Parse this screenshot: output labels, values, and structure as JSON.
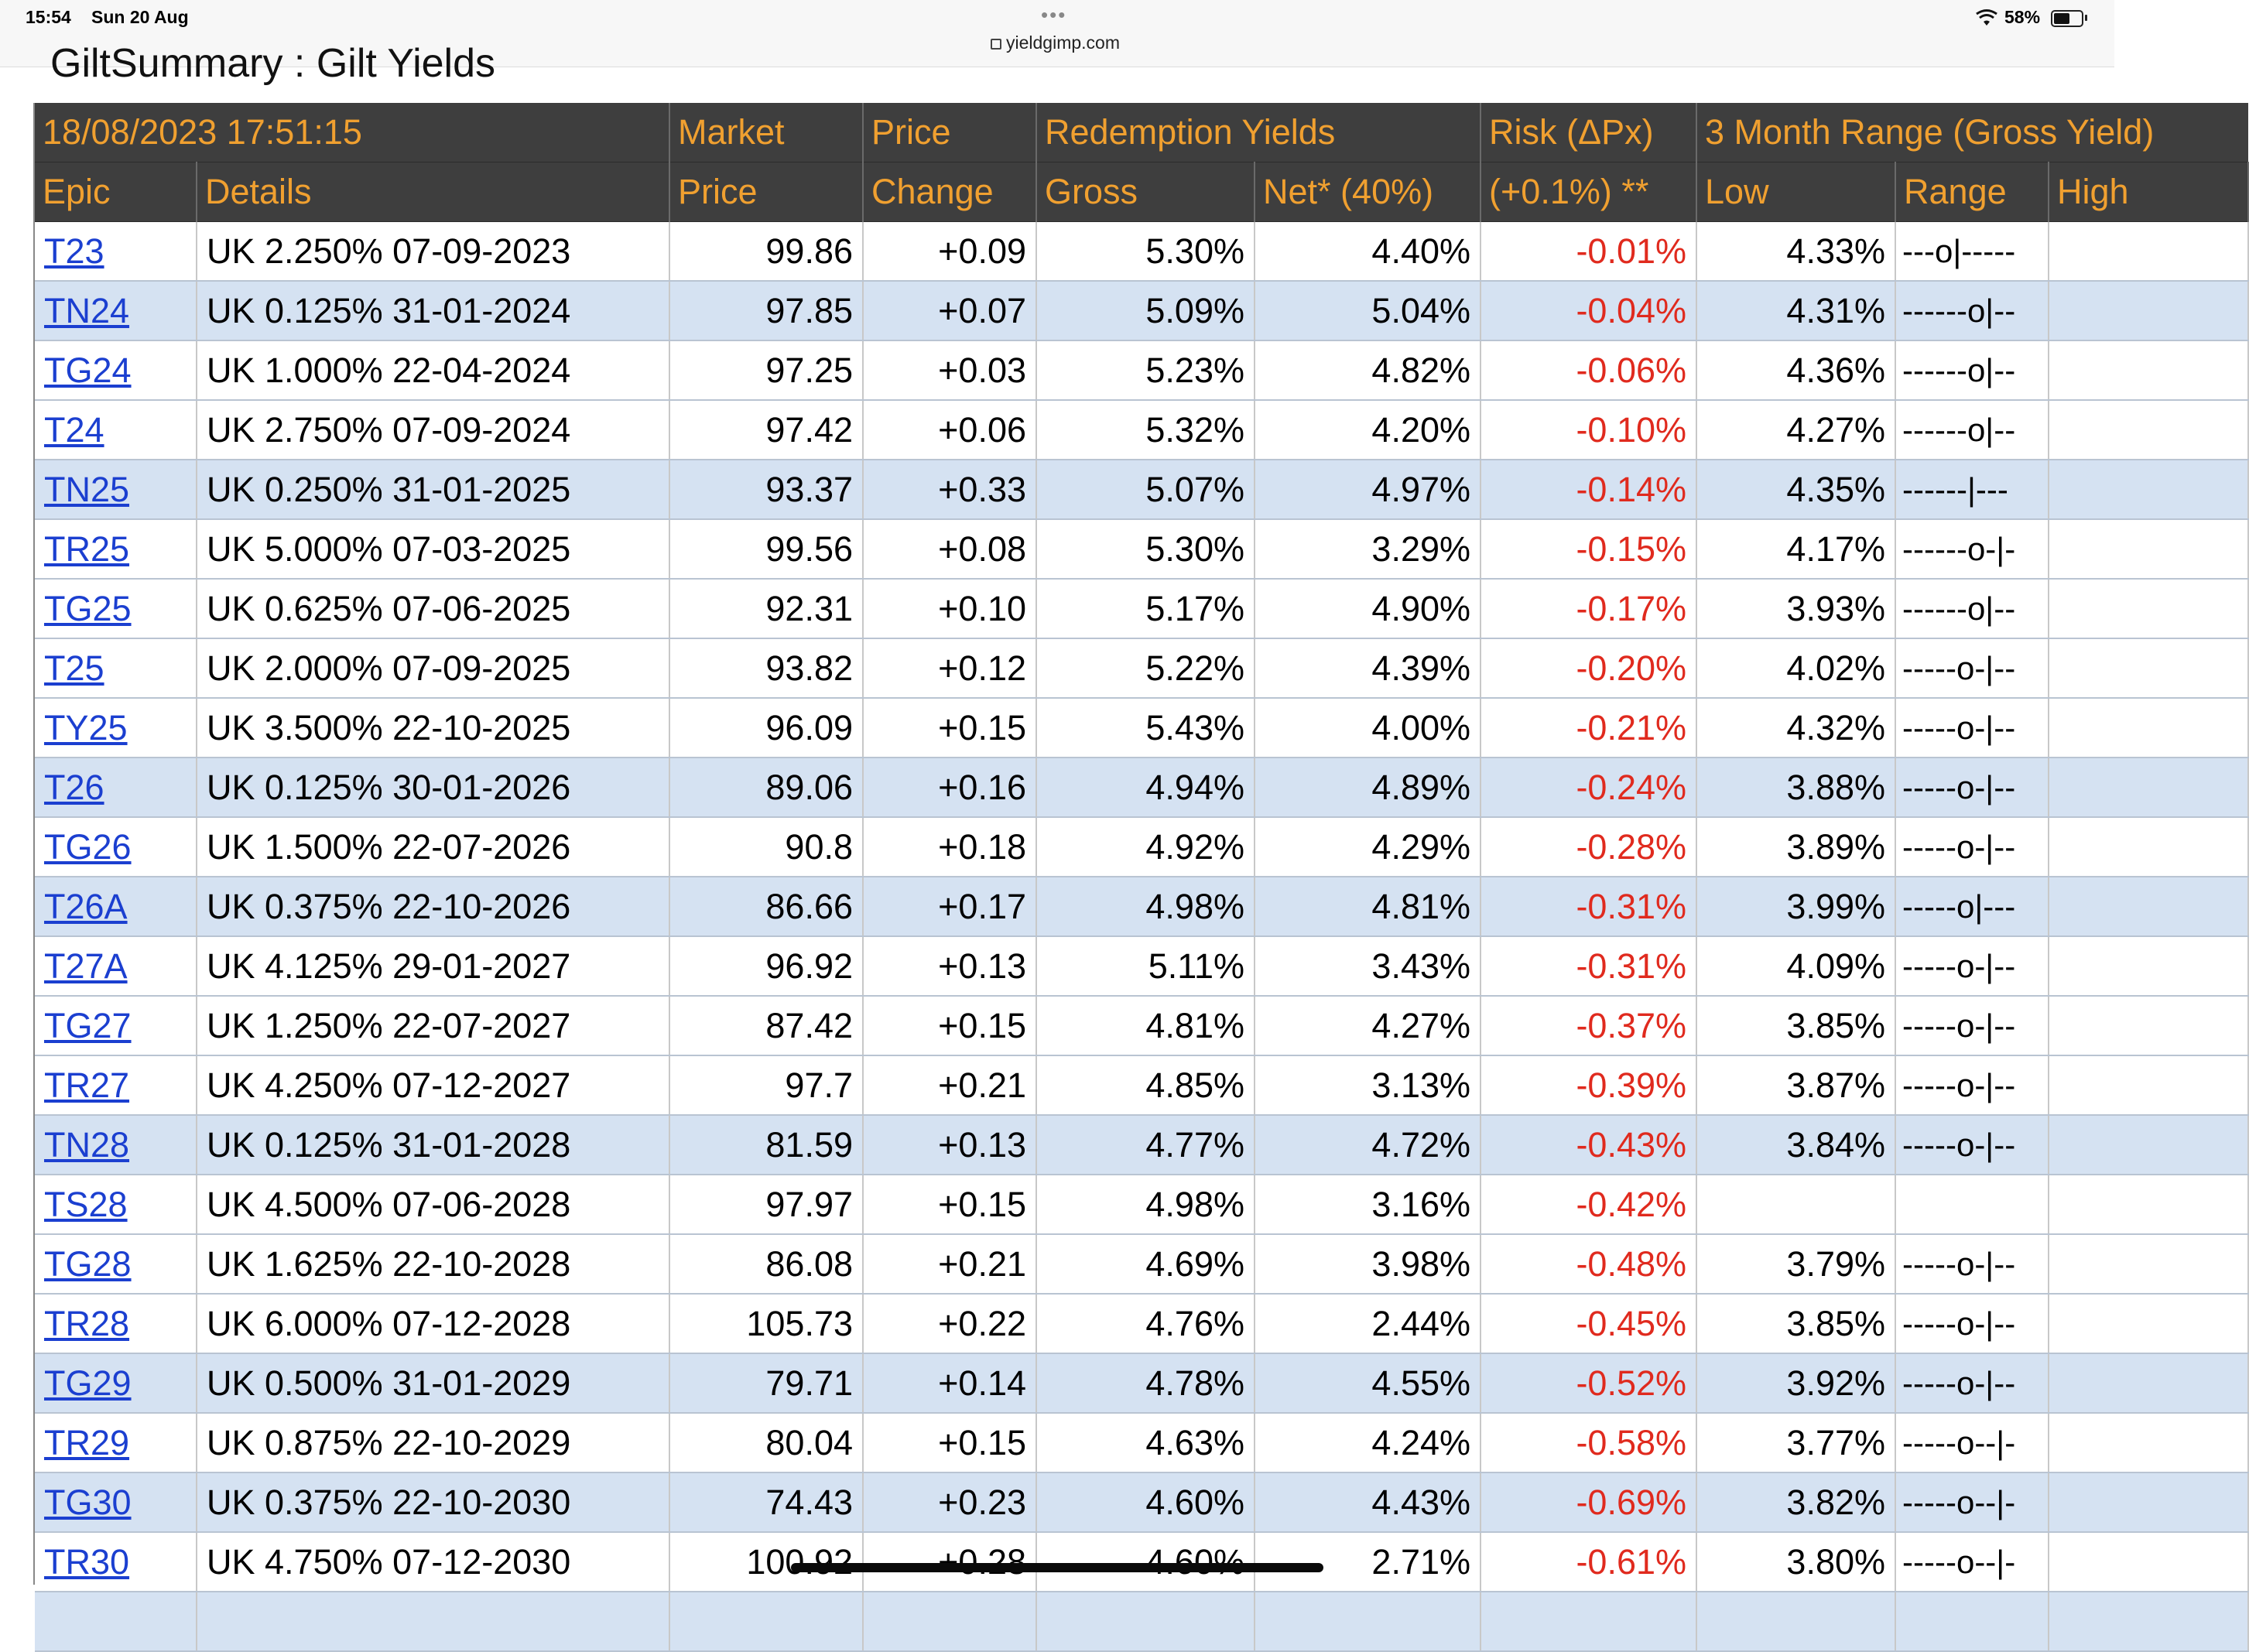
{
  "status": {
    "time": "15:54",
    "date": "Sun 20 Aug",
    "url": "yieldgimp.com",
    "battery": "58%",
    "battery_level": 0.58
  },
  "page": {
    "title": "GiltSummary : Gilt Yields"
  },
  "table": {
    "header_top": {
      "timestamp": "18/08/2023 17:51:15",
      "market": "Market",
      "price": "Price",
      "redemption_yields": "Redemption Yields",
      "risk": "Risk (ΔPx)",
      "range_title": "3 Month Range (Gross Yield)"
    },
    "header_sub": {
      "epic": "Epic",
      "details": "Details",
      "price": "Price",
      "change": "Change",
      "gross": "Gross",
      "net": "Net* (40%)",
      "risk": "(+0.1%) **",
      "low": "Low",
      "range": "Range",
      "high": "High"
    },
    "rows": [
      {
        "epic": "T23",
        "details": "UK 2.250% 07-09-2023",
        "price": "99.86",
        "change": "+0.09",
        "gross": "5.30%",
        "net": "4.40%",
        "risk": "-0.01%",
        "low": "4.33%",
        "range": "---o|-----",
        "alt": false
      },
      {
        "epic": "TN24",
        "details": "UK 0.125% 31-01-2024",
        "price": "97.85",
        "change": "+0.07",
        "gross": "5.09%",
        "net": "5.04%",
        "risk": "-0.04%",
        "low": "4.31%",
        "range": "------o|--",
        "alt": true
      },
      {
        "epic": "TG24",
        "details": "UK 1.000% 22-04-2024",
        "price": "97.25",
        "change": "+0.03",
        "gross": "5.23%",
        "net": "4.82%",
        "risk": "-0.06%",
        "low": "4.36%",
        "range": "------o|--",
        "alt": false
      },
      {
        "epic": "T24",
        "details": "UK 2.750% 07-09-2024",
        "price": "97.42",
        "change": "+0.06",
        "gross": "5.32%",
        "net": "4.20%",
        "risk": "-0.10%",
        "low": "4.27%",
        "range": "------o|--",
        "alt": false
      },
      {
        "epic": "TN25",
        "details": "UK 0.250% 31-01-2025",
        "price": "93.37",
        "change": "+0.33",
        "gross": "5.07%",
        "net": "4.97%",
        "risk": "-0.14%",
        "low": "4.35%",
        "range": "------|---",
        "alt": true
      },
      {
        "epic": "TR25",
        "details": "UK 5.000% 07-03-2025",
        "price": "99.56",
        "change": "+0.08",
        "gross": "5.30%",
        "net": "3.29%",
        "risk": "-0.15%",
        "low": "4.17%",
        "range": "------o-|-",
        "alt": false
      },
      {
        "epic": "TG25",
        "details": "UK 0.625% 07-06-2025",
        "price": "92.31",
        "change": "+0.10",
        "gross": "5.17%",
        "net": "4.90%",
        "risk": "-0.17%",
        "low": "3.93%",
        "range": "------o|--",
        "alt": false
      },
      {
        "epic": "T25",
        "details": "UK 2.000% 07-09-2025",
        "price": "93.82",
        "change": "+0.12",
        "gross": "5.22%",
        "net": "4.39%",
        "risk": "-0.20%",
        "low": "4.02%",
        "range": "-----o-|--",
        "alt": false
      },
      {
        "epic": "TY25",
        "details": "UK 3.500% 22-10-2025",
        "price": "96.09",
        "change": "+0.15",
        "gross": "5.43%",
        "net": "4.00%",
        "risk": "-0.21%",
        "low": "4.32%",
        "range": "-----o-|--",
        "alt": false
      },
      {
        "epic": "T26",
        "details": "UK 0.125% 30-01-2026",
        "price": "89.06",
        "change": "+0.16",
        "gross": "4.94%",
        "net": "4.89%",
        "risk": "-0.24%",
        "low": "3.88%",
        "range": "-----o-|--",
        "alt": true
      },
      {
        "epic": "TG26",
        "details": "UK 1.500% 22-07-2026",
        "price": "90.8",
        "change": "+0.18",
        "gross": "4.92%",
        "net": "4.29%",
        "risk": "-0.28%",
        "low": "3.89%",
        "range": "-----o-|--",
        "alt": false
      },
      {
        "epic": "T26A",
        "details": "UK 0.375% 22-10-2026",
        "price": "86.66",
        "change": "+0.17",
        "gross": "4.98%",
        "net": "4.81%",
        "risk": "-0.31%",
        "low": "3.99%",
        "range": "-----o|---",
        "alt": true
      },
      {
        "epic": "T27A",
        "details": "UK 4.125% 29-01-2027",
        "price": "96.92",
        "change": "+0.13",
        "gross": "5.11%",
        "net": "3.43%",
        "risk": "-0.31%",
        "low": "4.09%",
        "range": "-----o-|--",
        "alt": false
      },
      {
        "epic": "TG27",
        "details": "UK 1.250% 22-07-2027",
        "price": "87.42",
        "change": "+0.15",
        "gross": "4.81%",
        "net": "4.27%",
        "risk": "-0.37%",
        "low": "3.85%",
        "range": "-----o-|--",
        "alt": false
      },
      {
        "epic": "TR27",
        "details": "UK 4.250% 07-12-2027",
        "price": "97.7",
        "change": "+0.21",
        "gross": "4.85%",
        "net": "3.13%",
        "risk": "-0.39%",
        "low": "3.87%",
        "range": "-----o-|--",
        "alt": false
      },
      {
        "epic": "TN28",
        "details": "UK 0.125% 31-01-2028",
        "price": "81.59",
        "change": "+0.13",
        "gross": "4.77%",
        "net": "4.72%",
        "risk": "-0.43%",
        "low": "3.84%",
        "range": "-----o-|--",
        "alt": true
      },
      {
        "epic": "TS28",
        "details": "UK 4.500% 07-06-2028",
        "price": "97.97",
        "change": "+0.15",
        "gross": "4.98%",
        "net": "3.16%",
        "risk": "-0.42%",
        "low": "",
        "range": "",
        "alt": false
      },
      {
        "epic": "TG28",
        "details": "UK 1.625% 22-10-2028",
        "price": "86.08",
        "change": "+0.21",
        "gross": "4.69%",
        "net": "3.98%",
        "risk": "-0.48%",
        "low": "3.79%",
        "range": "-----o-|--",
        "alt": false
      },
      {
        "epic": "TR28",
        "details": "UK 6.000% 07-12-2028",
        "price": "105.73",
        "change": "+0.22",
        "gross": "4.76%",
        "net": "2.44%",
        "risk": "-0.45%",
        "low": "3.85%",
        "range": "-----o-|--",
        "alt": false
      },
      {
        "epic": "TG29",
        "details": "UK 0.500% 31-01-2029",
        "price": "79.71",
        "change": "+0.14",
        "gross": "4.78%",
        "net": "4.55%",
        "risk": "-0.52%",
        "low": "3.92%",
        "range": "-----o-|--",
        "alt": true
      },
      {
        "epic": "TR29",
        "details": "UK 0.875% 22-10-2029",
        "price": "80.04",
        "change": "+0.15",
        "gross": "4.63%",
        "net": "4.24%",
        "risk": "-0.58%",
        "low": "3.77%",
        "range": "-----o--|-",
        "alt": false
      },
      {
        "epic": "TG30",
        "details": "UK 0.375% 22-10-2030",
        "price": "74.43",
        "change": "+0.23",
        "gross": "4.60%",
        "net": "4.43%",
        "risk": "-0.69%",
        "low": "3.82%",
        "range": "-----o--|-",
        "alt": true
      },
      {
        "epic": "TR30",
        "details": "UK 4.750% 07-12-2030",
        "price": "100.92",
        "change": "+0.28",
        "gross": "4.60%",
        "net": "2.71%",
        "risk": "-0.61%",
        "low": "3.80%",
        "range": "-----o--|-",
        "alt": false
      },
      {
        "epic": "",
        "details": "",
        "price": "",
        "change": "",
        "gross": "",
        "net": "",
        "risk": "",
        "low": "",
        "range": "",
        "alt": true
      }
    ]
  },
  "colors": {
    "header_bg": "#3e3e3e",
    "header_text": "#f0a030",
    "alt_row": "#d5e2f2",
    "risk_text": "#e02a1e",
    "link": "#1b3fd0"
  }
}
